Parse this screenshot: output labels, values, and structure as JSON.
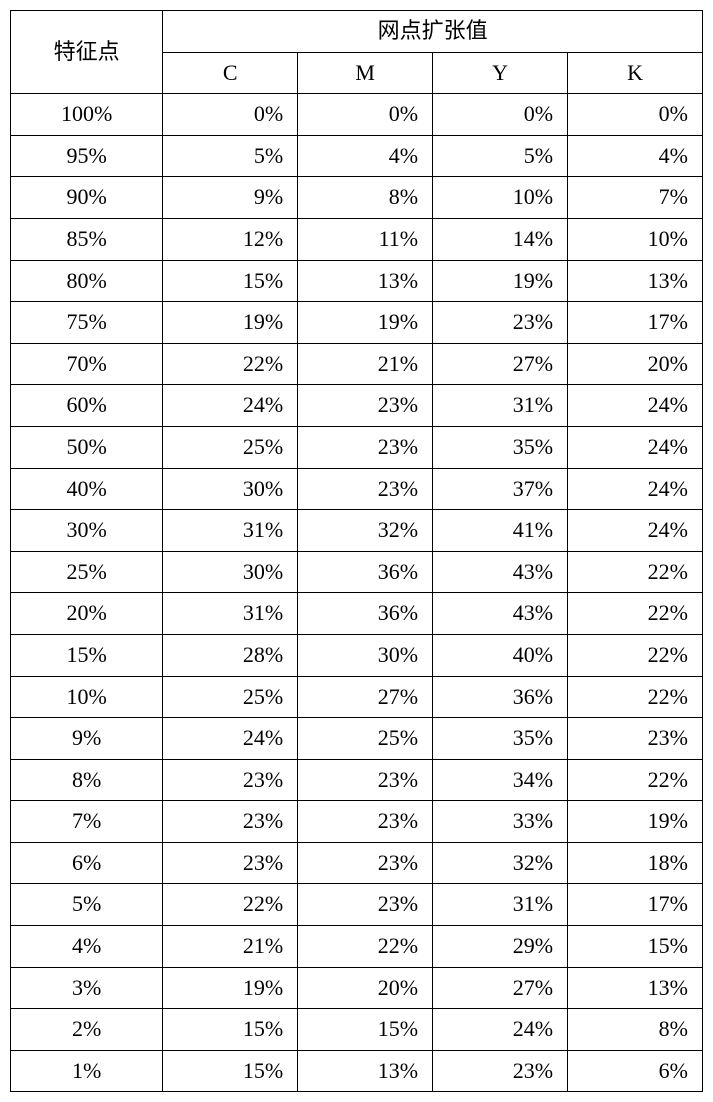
{
  "table": {
    "header_feature": "特征点",
    "header_group": "网点扩张值",
    "columns": [
      "C",
      "M",
      "Y",
      "K"
    ],
    "rows": [
      {
        "f": "100%",
        "c": "0%",
        "m": "0%",
        "y": "0%",
        "k": "0%"
      },
      {
        "f": "95%",
        "c": "5%",
        "m": "4%",
        "y": "5%",
        "k": "4%"
      },
      {
        "f": "90%",
        "c": "9%",
        "m": "8%",
        "y": "10%",
        "k": "7%"
      },
      {
        "f": "85%",
        "c": "12%",
        "m": "11%",
        "y": "14%",
        "k": "10%"
      },
      {
        "f": "80%",
        "c": "15%",
        "m": "13%",
        "y": "19%",
        "k": "13%"
      },
      {
        "f": "75%",
        "c": "19%",
        "m": "19%",
        "y": "23%",
        "k": "17%"
      },
      {
        "f": "70%",
        "c": "22%",
        "m": "21%",
        "y": "27%",
        "k": "20%"
      },
      {
        "f": "60%",
        "c": "24%",
        "m": "23%",
        "y": "31%",
        "k": "24%"
      },
      {
        "f": "50%",
        "c": "25%",
        "m": "23%",
        "y": "35%",
        "k": "24%"
      },
      {
        "f": "40%",
        "c": "30%",
        "m": "23%",
        "y": "37%",
        "k": "24%"
      },
      {
        "f": "30%",
        "c": "31%",
        "m": "32%",
        "y": "41%",
        "k": "24%"
      },
      {
        "f": "25%",
        "c": "30%",
        "m": "36%",
        "y": "43%",
        "k": "22%"
      },
      {
        "f": "20%",
        "c": "31%",
        "m": "36%",
        "y": "43%",
        "k": "22%"
      },
      {
        "f": "15%",
        "c": "28%",
        "m": "30%",
        "y": "40%",
        "k": "22%"
      },
      {
        "f": "10%",
        "c": "25%",
        "m": "27%",
        "y": "36%",
        "k": "22%"
      },
      {
        "f": "9%",
        "c": "24%",
        "m": "25%",
        "y": "35%",
        "k": "23%"
      },
      {
        "f": "8%",
        "c": "23%",
        "m": "23%",
        "y": "34%",
        "k": "22%"
      },
      {
        "f": "7%",
        "c": "23%",
        "m": "23%",
        "y": "33%",
        "k": "19%"
      },
      {
        "f": "6%",
        "c": "23%",
        "m": "23%",
        "y": "32%",
        "k": "18%"
      },
      {
        "f": "5%",
        "c": "22%",
        "m": "23%",
        "y": "31%",
        "k": "17%"
      },
      {
        "f": "4%",
        "c": "21%",
        "m": "22%",
        "y": "29%",
        "k": "15%"
      },
      {
        "f": "3%",
        "c": "19%",
        "m": "20%",
        "y": "27%",
        "k": "13%"
      },
      {
        "f": "2%",
        "c": "15%",
        "m": "15%",
        "y": "24%",
        "k": "8%"
      },
      {
        "f": "1%",
        "c": "15%",
        "m": "13%",
        "y": "23%",
        "k": "6%"
      }
    ],
    "border_color": "#000000",
    "background_color": "#ffffff",
    "font_size": 22,
    "col_widths": [
      "22%",
      "19.5%",
      "19.5%",
      "19.5%",
      "19.5%"
    ]
  }
}
